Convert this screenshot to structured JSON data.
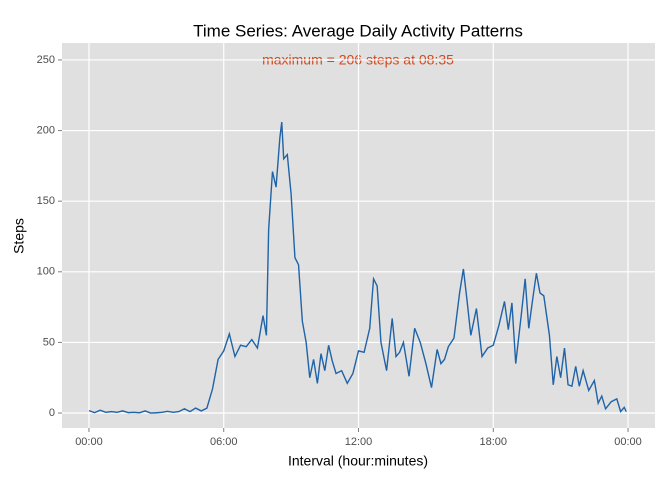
{
  "chart_data": {
    "type": "line",
    "title": "Time Series: Average Daily Activity Patterns",
    "x_label": "Interval (hour:minutes)",
    "y_label": "Steps",
    "annotation": "maximum = 206 steps at 08:35",
    "annotation_color": "#d2491c",
    "color": "#1f63a8",
    "grid": true,
    "xlim": [
      -1.2,
      25.2
    ],
    "ylim": [
      -10.6,
      262
    ],
    "xticks": [
      {
        "value": 0,
        "label": "00:00"
      },
      {
        "value": 6,
        "label": "06:00"
      },
      {
        "value": 12,
        "label": "12:00"
      },
      {
        "value": 18,
        "label": "18:00"
      },
      {
        "value": 24,
        "label": "00:00"
      }
    ],
    "yticks": [
      0,
      50,
      100,
      150,
      200,
      250
    ],
    "x": [
      0,
      0.25,
      0.5,
      0.75,
      1,
      1.25,
      1.5,
      1.75,
      2,
      2.25,
      2.5,
      2.75,
      3,
      3.25,
      3.5,
      3.75,
      4,
      4.25,
      4.5,
      4.75,
      5,
      5.25,
      5.5,
      5.75,
      6,
      6.25,
      6.5,
      6.75,
      7,
      7.25,
      7.5,
      7.75,
      7.9,
      8,
      8.17,
      8.33,
      8.5,
      8.583,
      8.67,
      8.83,
      9,
      9.17,
      9.33,
      9.5,
      9.67,
      9.83,
      10,
      10.17,
      10.33,
      10.5,
      10.67,
      10.83,
      11,
      11.25,
      11.5,
      11.75,
      12,
      12.25,
      12.5,
      12.67,
      12.83,
      13,
      13.25,
      13.5,
      13.67,
      13.83,
      14,
      14.25,
      14.5,
      14.75,
      15,
      15.25,
      15.5,
      15.67,
      15.83,
      16,
      16.25,
      16.5,
      16.67,
      16.83,
      17,
      17.25,
      17.5,
      17.75,
      18,
      18.25,
      18.5,
      18.67,
      18.83,
      19,
      19.25,
      19.42,
      19.58,
      19.75,
      19.92,
      20.08,
      20.25,
      20.5,
      20.67,
      20.83,
      21,
      21.17,
      21.33,
      21.5,
      21.67,
      21.83,
      22,
      22.25,
      22.5,
      22.67,
      22.83,
      23,
      23.25,
      23.5,
      23.67,
      23.83,
      23.92
    ],
    "values": [
      1.7,
      0.3,
      2,
      0.5,
      1,
      0.5,
      1.5,
      0.3,
      0.5,
      0.2,
      1.5,
      0,
      0.2,
      0.5,
      1.2,
      0.5,
      1,
      3,
      1,
      3.5,
      1.5,
      3.5,
      17,
      38,
      44,
      56,
      40,
      48,
      47,
      52,
      46,
      69,
      55,
      130,
      171,
      160,
      195,
      206,
      180,
      183,
      155,
      110,
      105,
      65,
      50,
      25,
      38,
      21,
      42,
      30,
      48,
      37,
      28,
      30,
      21,
      28,
      44,
      43,
      60,
      95,
      90,
      50,
      30,
      67,
      40,
      43,
      50,
      26,
      60,
      50,
      35,
      18,
      45,
      35,
      38,
      47,
      53,
      85,
      102,
      80,
      55,
      74,
      40,
      46,
      48,
      62,
      79,
      59,
      78,
      35,
      70,
      95,
      60,
      80,
      99,
      85,
      83,
      55,
      20,
      40,
      25,
      46,
      20,
      19,
      33,
      19,
      30,
      16,
      23,
      7,
      12,
      3,
      8,
      10,
      1,
      4,
      1
    ]
  }
}
